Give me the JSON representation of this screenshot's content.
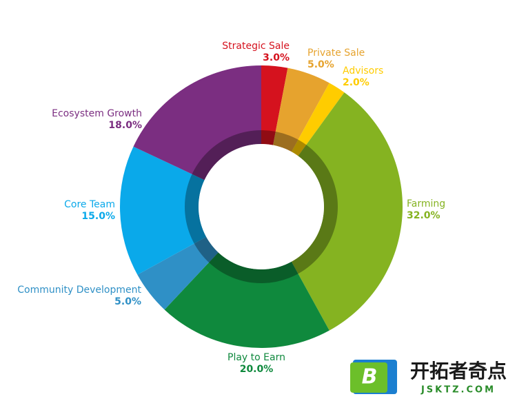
{
  "chart_data": {
    "type": "donut",
    "categories": [
      "Strategic Sale",
      "Private Sale",
      "Advisors",
      "Farming",
      "Play to Earn",
      "Community Development",
      "Core Team",
      "Ecosystem Growth"
    ],
    "values": [
      3,
      5,
      2,
      32,
      20,
      5,
      15,
      18
    ],
    "value_labels": [
      "3.0%",
      "5.0%",
      "2.0%",
      "32.0%",
      "20.0%",
      "5.0%",
      "15.0%",
      "18.0%"
    ],
    "colors": [
      "#d5121e",
      "#e6a32e",
      "#ffcc00",
      "#85b321",
      "#0f893d",
      "#2f90c6",
      "#0aa9ea",
      "#7b2e81"
    ]
  },
  "watermark": {
    "logo": "B",
    "name": "开拓者奇点",
    "site": "JSKTZ.COM"
  }
}
